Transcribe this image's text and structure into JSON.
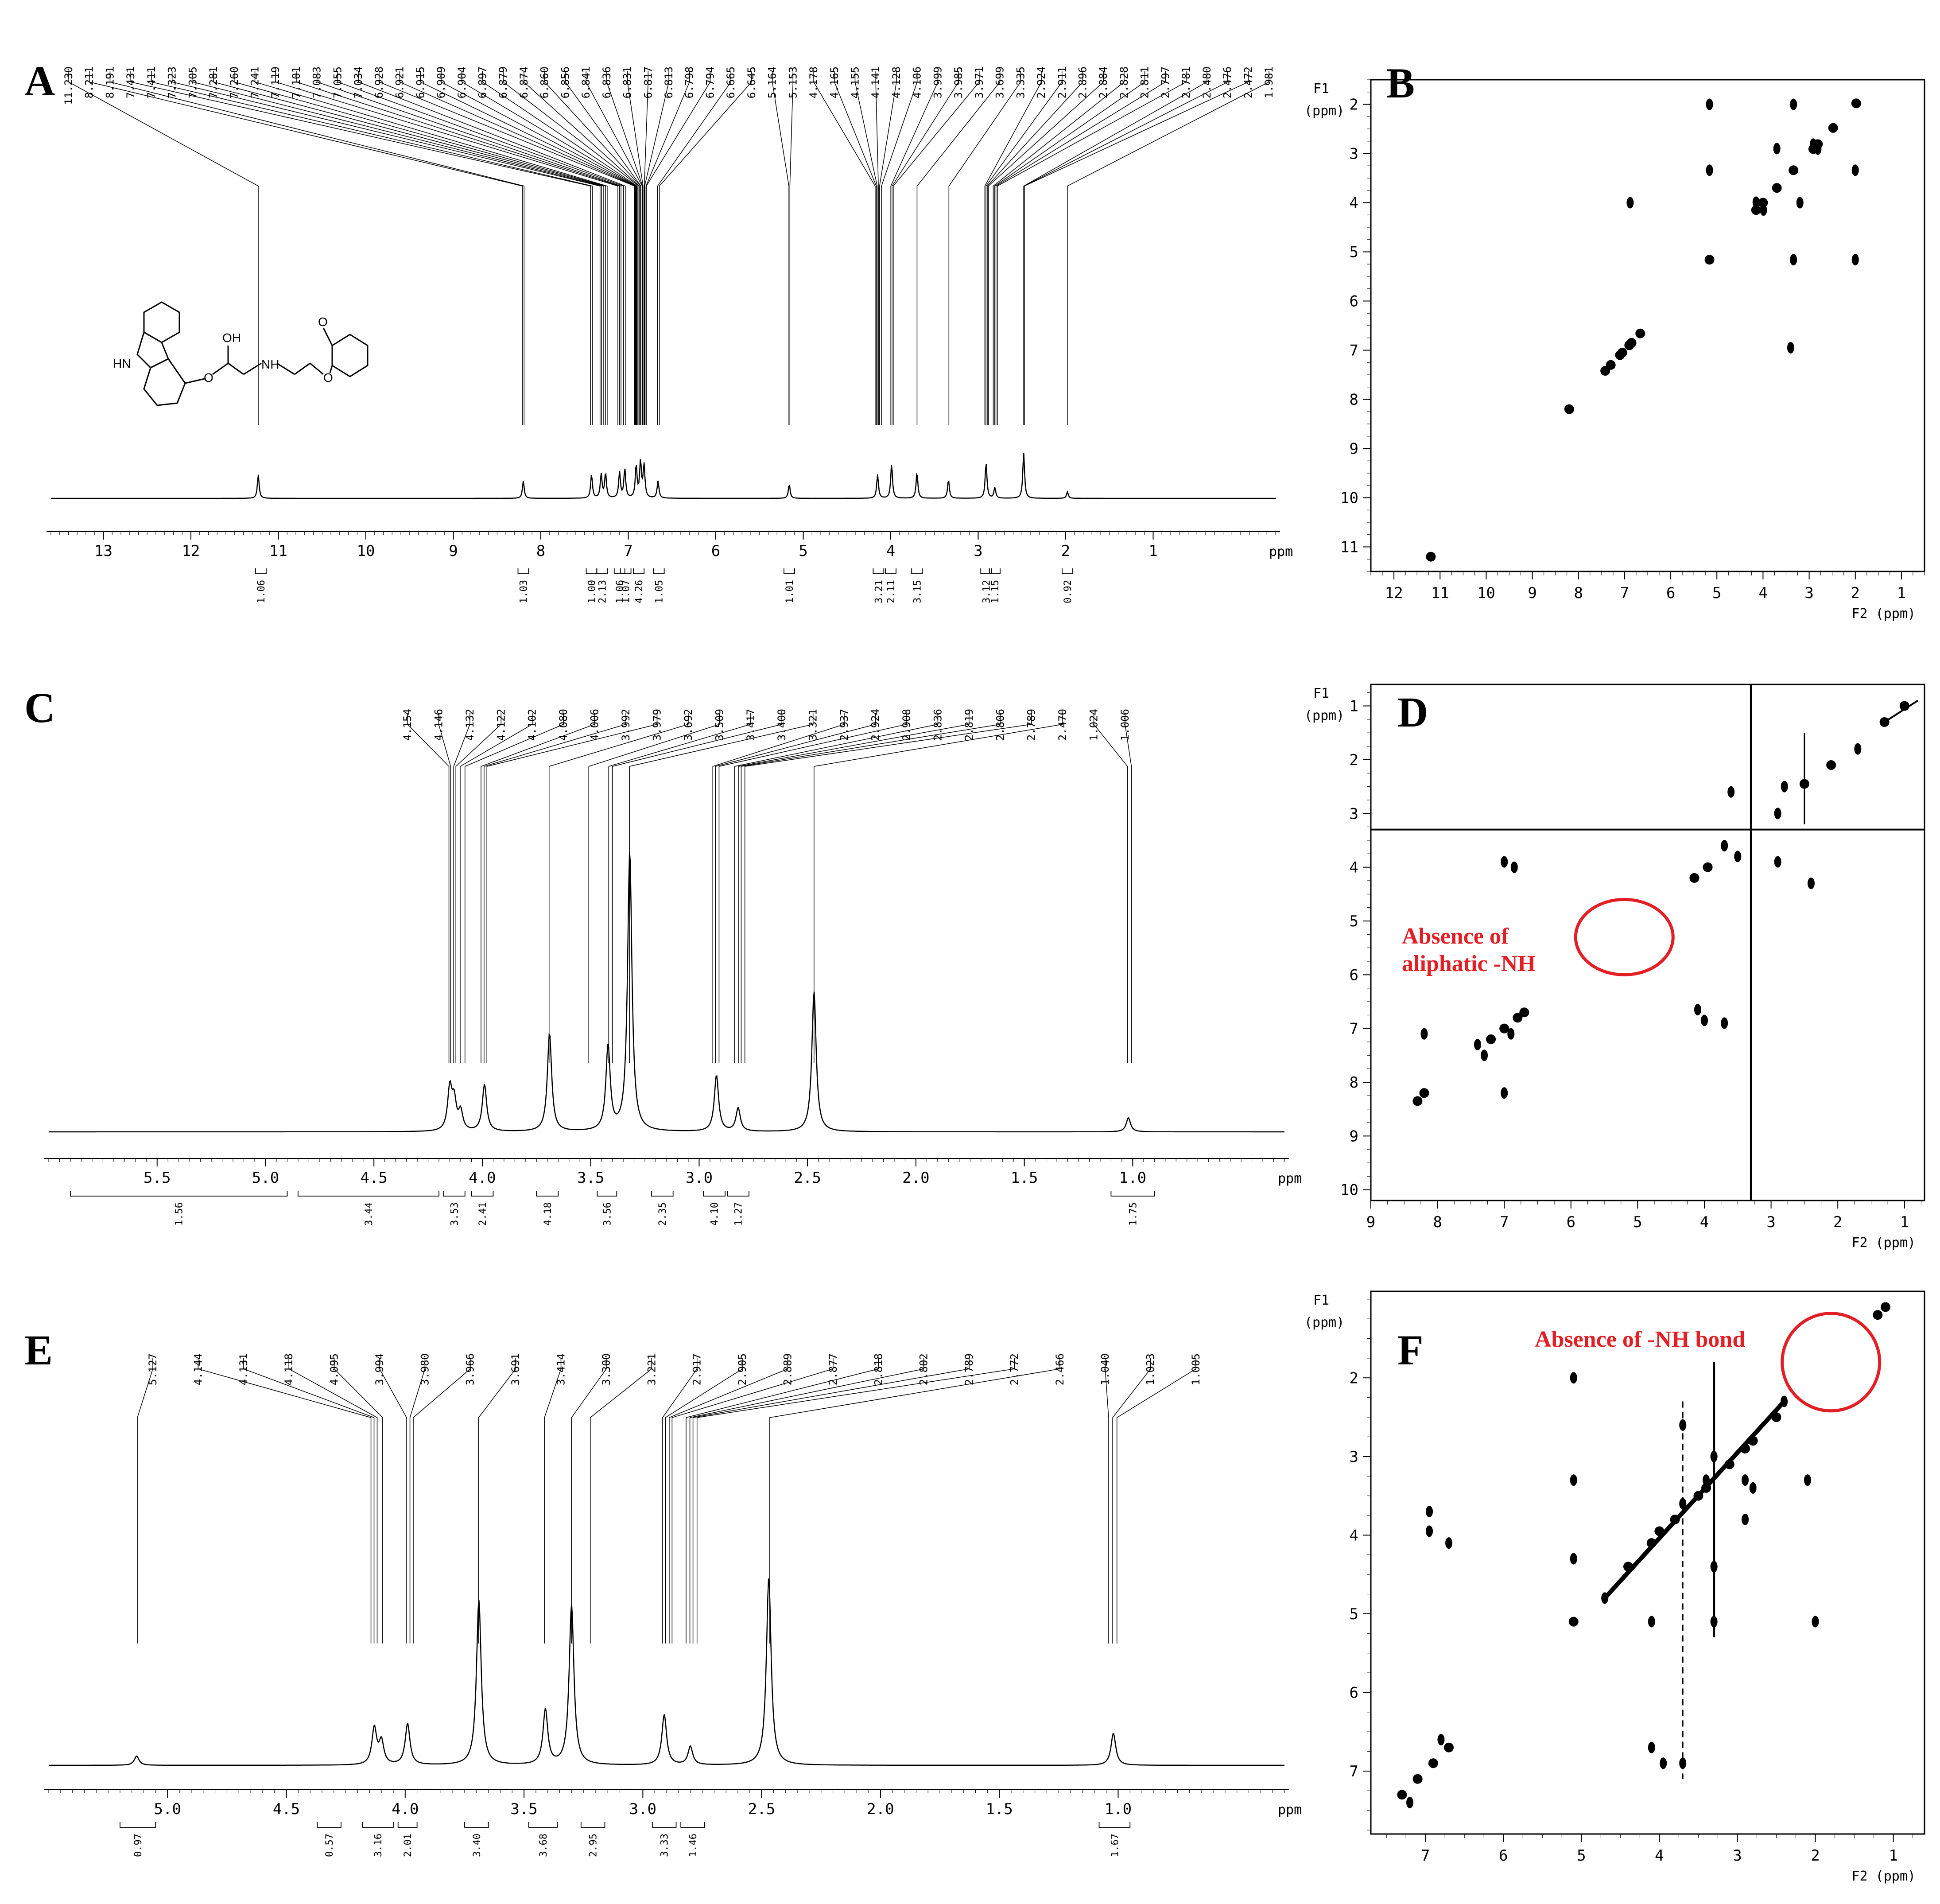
{
  "colors": {
    "annotation": "#e31e24",
    "ink": "#000000"
  },
  "chart_data": [
    {
      "panel": "A",
      "type": "line",
      "axis_unit": "ppm",
      "xlim": [
        13.6,
        -0.4
      ],
      "x_ticks": [
        13,
        12,
        11,
        10,
        9,
        8,
        7,
        6,
        5,
        4,
        3,
        2,
        1
      ],
      "peak_labels": [
        "11.230",
        "8.211",
        "8.191",
        "7.431",
        "7.411",
        "7.323",
        "7.305",
        "7.281",
        "7.260",
        "7.241",
        "7.119",
        "7.101",
        "7.083",
        "7.055",
        "7.034",
        "6.928",
        "6.921",
        "6.915",
        "6.909",
        "6.904",
        "6.897",
        "6.879",
        "6.874",
        "6.860",
        "6.856",
        "6.841",
        "6.836",
        "6.831",
        "6.817",
        "6.813",
        "6.798",
        "6.794",
        "6.665",
        "6.645",
        "5.164",
        "5.153",
        "4.178",
        "4.165",
        "4.155",
        "4.141",
        "4.128",
        "4.106",
        "3.999",
        "3.985",
        "3.971",
        "3.699",
        "3.335",
        "2.924",
        "2.911",
        "2.896",
        "2.884",
        "2.828",
        "2.811",
        "2.797",
        "2.781",
        "2.480",
        "2.476",
        "2.472",
        "1.981"
      ],
      "peaks": [
        {
          "x": 11.23,
          "h": 0.22
        },
        {
          "x": 8.2,
          "h": 0.16
        },
        {
          "x": 7.42,
          "h": 0.22
        },
        {
          "x": 7.31,
          "h": 0.22
        },
        {
          "x": 7.26,
          "h": 0.23
        },
        {
          "x": 7.1,
          "h": 0.24
        },
        {
          "x": 7.04,
          "h": 0.27
        },
        {
          "x": 6.91,
          "h": 0.3
        },
        {
          "x": 6.86,
          "h": 0.33
        },
        {
          "x": 6.82,
          "h": 0.3
        },
        {
          "x": 6.66,
          "h": 0.16
        },
        {
          "x": 5.16,
          "h": 0.13
        },
        {
          "x": 4.15,
          "h": 0.22
        },
        {
          "x": 3.99,
          "h": 0.32
        },
        {
          "x": 3.7,
          "h": 0.24
        },
        {
          "x": 3.34,
          "h": 0.17
        },
        {
          "x": 2.91,
          "h": 0.33
        },
        {
          "x": 2.81,
          "h": 0.1
        },
        {
          "x": 2.48,
          "h": 0.42
        },
        {
          "x": 1.98,
          "h": 0.06
        }
      ],
      "integrals": [
        {
          "x": 11.2,
          "label": "1.06"
        },
        {
          "x": 8.2,
          "label": "1.03"
        },
        {
          "x": 7.42,
          "label": "1.00"
        },
        {
          "x": 7.3,
          "label": "2.13"
        },
        {
          "x": 7.1,
          "label": "1.06"
        },
        {
          "x": 7.03,
          "label": "1.07"
        },
        {
          "x": 6.88,
          "label": "4.26"
        },
        {
          "x": 6.65,
          "label": "1.05"
        },
        {
          "x": 5.16,
          "label": "1.01"
        },
        {
          "x": 4.14,
          "label": "3.21"
        },
        {
          "x": 4.0,
          "label": "2.11"
        },
        {
          "x": 3.7,
          "label": "3.15"
        },
        {
          "x": 2.91,
          "label": "3.12"
        },
        {
          "x": 2.81,
          "label": "1.15"
        },
        {
          "x": 1.98,
          "label": "0.92"
        }
      ],
      "structure_labels": {
        "nh": "HN",
        "oh": "OH",
        "amine": "NH",
        "ometh": "O",
        "o1": "O",
        "o2": "O"
      }
    },
    {
      "panel": "B",
      "type": "scatter",
      "f1_label": "F1",
      "f1_unit": "(ppm)",
      "f2_label": "F2 (ppm)",
      "xlim": [
        12.5,
        0.5
      ],
      "ylim": [
        1.5,
        11.5
      ],
      "x_ticks": [
        12,
        11,
        10,
        9,
        8,
        7,
        6,
        5,
        4,
        3,
        2,
        1
      ],
      "y_ticks": [
        2,
        3,
        4,
        5,
        6,
        7,
        8,
        9,
        10,
        11
      ],
      "points": [
        [
          11.2,
          11.2
        ],
        [
          8.2,
          8.2
        ],
        [
          7.42,
          7.42
        ],
        [
          7.3,
          7.3
        ],
        [
          7.1,
          7.1
        ],
        [
          7.05,
          7.05
        ],
        [
          6.9,
          6.9
        ],
        [
          6.85,
          6.85
        ],
        [
          6.66,
          6.66
        ],
        [
          5.16,
          5.16
        ],
        [
          4.15,
          4.15
        ],
        [
          4.0,
          4.0
        ],
        [
          3.7,
          3.7
        ],
        [
          3.34,
          3.34
        ],
        [
          2.91,
          2.91
        ],
        [
          2.81,
          2.81
        ],
        [
          2.48,
          2.48
        ],
        [
          1.98,
          1.98
        ],
        [
          5.16,
          2.0
        ],
        [
          2.0,
          5.16
        ],
        [
          5.16,
          3.34
        ],
        [
          3.34,
          5.16
        ],
        [
          3.34,
          2.0
        ],
        [
          2.0,
          3.34
        ],
        [
          2.91,
          2.81
        ],
        [
          2.81,
          2.91
        ],
        [
          4.15,
          3.99
        ],
        [
          3.99,
          4.15
        ],
        [
          3.7,
          2.9
        ],
        [
          6.88,
          4.0
        ],
        [
          3.4,
          6.95
        ],
        [
          3.2,
          4.0
        ]
      ]
    },
    {
      "panel": "C",
      "type": "line",
      "axis_unit": "ppm",
      "xlim": [
        6.0,
        0.3
      ],
      "x_ticks": [
        5.5,
        5.0,
        4.5,
        4.0,
        3.5,
        3.0,
        2.5,
        2.0,
        1.5,
        1.0
      ],
      "x_tick_labels": [
        "5.5",
        "5.0",
        "4.5",
        "4.0",
        "3.5",
        "3.0",
        "2.5",
        "2.0",
        "1.5",
        "1.0"
      ],
      "peak_labels": [
        "4.154",
        "4.146",
        "4.132",
        "4.122",
        "4.102",
        "4.080",
        "4.006",
        "3.992",
        "3.979",
        "3.692",
        "3.509",
        "3.417",
        "3.400",
        "3.321",
        "2.937",
        "2.924",
        "2.908",
        "2.836",
        "2.819",
        "2.806",
        "2.789",
        "2.470",
        "1.024",
        "1.006"
      ],
      "peaks": [
        {
          "x": 4.15,
          "h": 0.09
        },
        {
          "x": 4.13,
          "h": 0.06
        },
        {
          "x": 4.1,
          "h": 0.04
        },
        {
          "x": 3.99,
          "h": 0.1
        },
        {
          "x": 3.69,
          "h": 0.21
        },
        {
          "x": 3.42,
          "h": 0.18
        },
        {
          "x": 3.32,
          "h": 0.6
        },
        {
          "x": 2.92,
          "h": 0.12
        },
        {
          "x": 2.82,
          "h": 0.05
        },
        {
          "x": 2.47,
          "h": 0.3
        },
        {
          "x": 1.02,
          "h": 0.03
        }
      ],
      "integrals": [
        {
          "from": 5.9,
          "to": 4.9,
          "label": "1.56"
        },
        {
          "from": 4.85,
          "to": 4.2,
          "label": "3.44"
        },
        {
          "from": 4.18,
          "to": 4.08,
          "label": "3.53"
        },
        {
          "from": 4.05,
          "to": 3.95,
          "label": "2.41"
        },
        {
          "from": 3.75,
          "to": 3.65,
          "label": "4.18"
        },
        {
          "from": 3.47,
          "to": 3.38,
          "label": "3.56"
        },
        {
          "from": 3.22,
          "to": 3.12,
          "label": "2.35"
        },
        {
          "from": 2.98,
          "to": 2.88,
          "label": "4.10"
        },
        {
          "from": 2.87,
          "to": 2.77,
          "label": "1.27"
        },
        {
          "from": 1.1,
          "to": 0.9,
          "label": "1.75"
        }
      ]
    },
    {
      "panel": "D",
      "type": "scatter",
      "f1_label": "F1",
      "f1_unit": "(ppm)",
      "f2_label": "F2 (ppm)",
      "xlim": [
        9.0,
        0.7
      ],
      "ylim": [
        0.6,
        10.2
      ],
      "x_ticks": [
        9,
        8,
        7,
        6,
        5,
        4,
        3,
        2,
        1
      ],
      "y_ticks": [
        1,
        2,
        3,
        4,
        5,
        6,
        7,
        8,
        9,
        10
      ],
      "annotation": "Absence of aliphatic -NH",
      "annotation_lines": [
        "Absence of",
        "aliphatic -NH"
      ],
      "circle_center": [
        5.2,
        5.3
      ],
      "points": [
        [
          8.2,
          7.1
        ],
        [
          8.2,
          8.2
        ],
        [
          7.0,
          8.2
        ],
        [
          7.0,
          3.9
        ],
        [
          6.85,
          4.0
        ],
        [
          4.1,
          6.65
        ],
        [
          4.0,
          6.85
        ],
        [
          3.7,
          6.9
        ],
        [
          8.3,
          8.35
        ],
        [
          7.4,
          7.3
        ],
        [
          7.2,
          7.2
        ],
        [
          7.0,
          7.0
        ],
        [
          6.8,
          6.8
        ],
        [
          6.7,
          6.7
        ],
        [
          7.3,
          7.5
        ],
        [
          6.9,
          7.1
        ],
        [
          4.15,
          4.2
        ],
        [
          3.95,
          4.0
        ],
        [
          3.7,
          3.6
        ],
        [
          2.9,
          3.0
        ],
        [
          2.8,
          2.5
        ],
        [
          2.5,
          2.45
        ],
        [
          2.1,
          2.1
        ],
        [
          1.7,
          1.8
        ],
        [
          1.3,
          1.3
        ],
        [
          1.0,
          1.0
        ],
        [
          3.5,
          3.8
        ],
        [
          3.6,
          2.6
        ],
        [
          2.9,
          3.9
        ],
        [
          2.4,
          4.3
        ]
      ]
    },
    {
      "panel": "E",
      "type": "line",
      "axis_unit": "ppm",
      "xlim": [
        5.5,
        0.3
      ],
      "x_ticks": [
        5.0,
        4.5,
        4.0,
        3.5,
        3.0,
        2.5,
        2.0,
        1.5,
        1.0
      ],
      "x_tick_labels": [
        "5.0",
        "4.5",
        "4.0",
        "3.5",
        "3.0",
        "2.5",
        "2.0",
        "1.5",
        "1.0"
      ],
      "peak_labels": [
        "5.127",
        "4.144",
        "4.131",
        "4.118",
        "4.095",
        "3.994",
        "3.980",
        "3.966",
        "3.691",
        "3.414",
        "3.300",
        "3.221",
        "2.917",
        "2.905",
        "2.889",
        "2.877",
        "2.818",
        "2.802",
        "2.789",
        "2.772",
        "2.466",
        "1.040",
        "1.023",
        "1.005"
      ],
      "peaks": [
        {
          "x": 5.13,
          "h": 0.02
        },
        {
          "x": 4.13,
          "h": 0.08
        },
        {
          "x": 4.1,
          "h": 0.05
        },
        {
          "x": 3.99,
          "h": 0.09
        },
        {
          "x": 3.69,
          "h": 0.36
        },
        {
          "x": 3.41,
          "h": 0.12
        },
        {
          "x": 3.3,
          "h": 0.35
        },
        {
          "x": 2.91,
          "h": 0.11
        },
        {
          "x": 2.8,
          "h": 0.04
        },
        {
          "x": 2.47,
          "h": 0.41
        },
        {
          "x": 1.02,
          "h": 0.07
        }
      ],
      "integrals": [
        {
          "from": 5.2,
          "to": 5.05,
          "label": "0.97"
        },
        {
          "from": 4.37,
          "to": 4.27,
          "label": "0.57"
        },
        {
          "from": 4.18,
          "to": 4.05,
          "label": "3.16"
        },
        {
          "from": 4.03,
          "to": 3.95,
          "label": "2.01"
        },
        {
          "from": 3.75,
          "to": 3.65,
          "label": "3.40"
        },
        {
          "from": 3.48,
          "to": 3.36,
          "label": "3.68"
        },
        {
          "from": 3.26,
          "to": 3.16,
          "label": "2.95"
        },
        {
          "from": 2.96,
          "to": 2.86,
          "label": "3.33"
        },
        {
          "from": 2.84,
          "to": 2.74,
          "label": "1.46"
        },
        {
          "from": 1.08,
          "to": 0.95,
          "label": "1.67"
        }
      ]
    },
    {
      "panel": "F",
      "type": "scatter",
      "f1_label": "F1",
      "f1_unit": "(ppm)",
      "f2_label": "F2 (ppm)",
      "xlim": [
        7.7,
        0.6
      ],
      "ylim": [
        0.9,
        7.8
      ],
      "x_ticks": [
        7,
        6,
        5,
        4,
        3,
        2,
        1
      ],
      "y_ticks": [
        2,
        3,
        4,
        5,
        6,
        7
      ],
      "annotation": "Absence of -NH bond",
      "circle_center": [
        1.8,
        1.8
      ],
      "points": [
        [
          7.3,
          7.3
        ],
        [
          7.1,
          7.1
        ],
        [
          6.9,
          6.9
        ],
        [
          6.7,
          6.7
        ],
        [
          7.2,
          7.4
        ],
        [
          6.8,
          6.6
        ],
        [
          5.1,
          2.0
        ],
        [
          5.1,
          3.3
        ],
        [
          5.1,
          5.1
        ],
        [
          5.1,
          4.3
        ],
        [
          4.1,
          5.1
        ],
        [
          3.3,
          5.1
        ],
        [
          2.0,
          5.1
        ],
        [
          1.2,
          1.2
        ],
        [
          1.1,
          1.1
        ],
        [
          6.95,
          3.7
        ],
        [
          6.95,
          3.95
        ],
        [
          6.7,
          4.1
        ],
        [
          4.1,
          6.7
        ],
        [
          3.95,
          6.9
        ],
        [
          3.7,
          6.9
        ],
        [
          4.7,
          4.8
        ],
        [
          4.4,
          4.4
        ],
        [
          4.1,
          4.1
        ],
        [
          4.0,
          3.95
        ],
        [
          3.8,
          3.8
        ],
        [
          3.7,
          3.6
        ],
        [
          3.5,
          3.5
        ],
        [
          3.4,
          3.3
        ],
        [
          3.3,
          3.0
        ],
        [
          3.1,
          3.1
        ],
        [
          2.9,
          2.9
        ],
        [
          2.8,
          2.8
        ],
        [
          2.5,
          2.5
        ],
        [
          2.4,
          2.3
        ],
        [
          3.3,
          4.4
        ],
        [
          3.4,
          3.4
        ],
        [
          2.9,
          3.3
        ],
        [
          2.8,
          3.4
        ],
        [
          2.1,
          3.3
        ],
        [
          3.7,
          2.6
        ],
        [
          2.9,
          3.8
        ]
      ]
    }
  ]
}
